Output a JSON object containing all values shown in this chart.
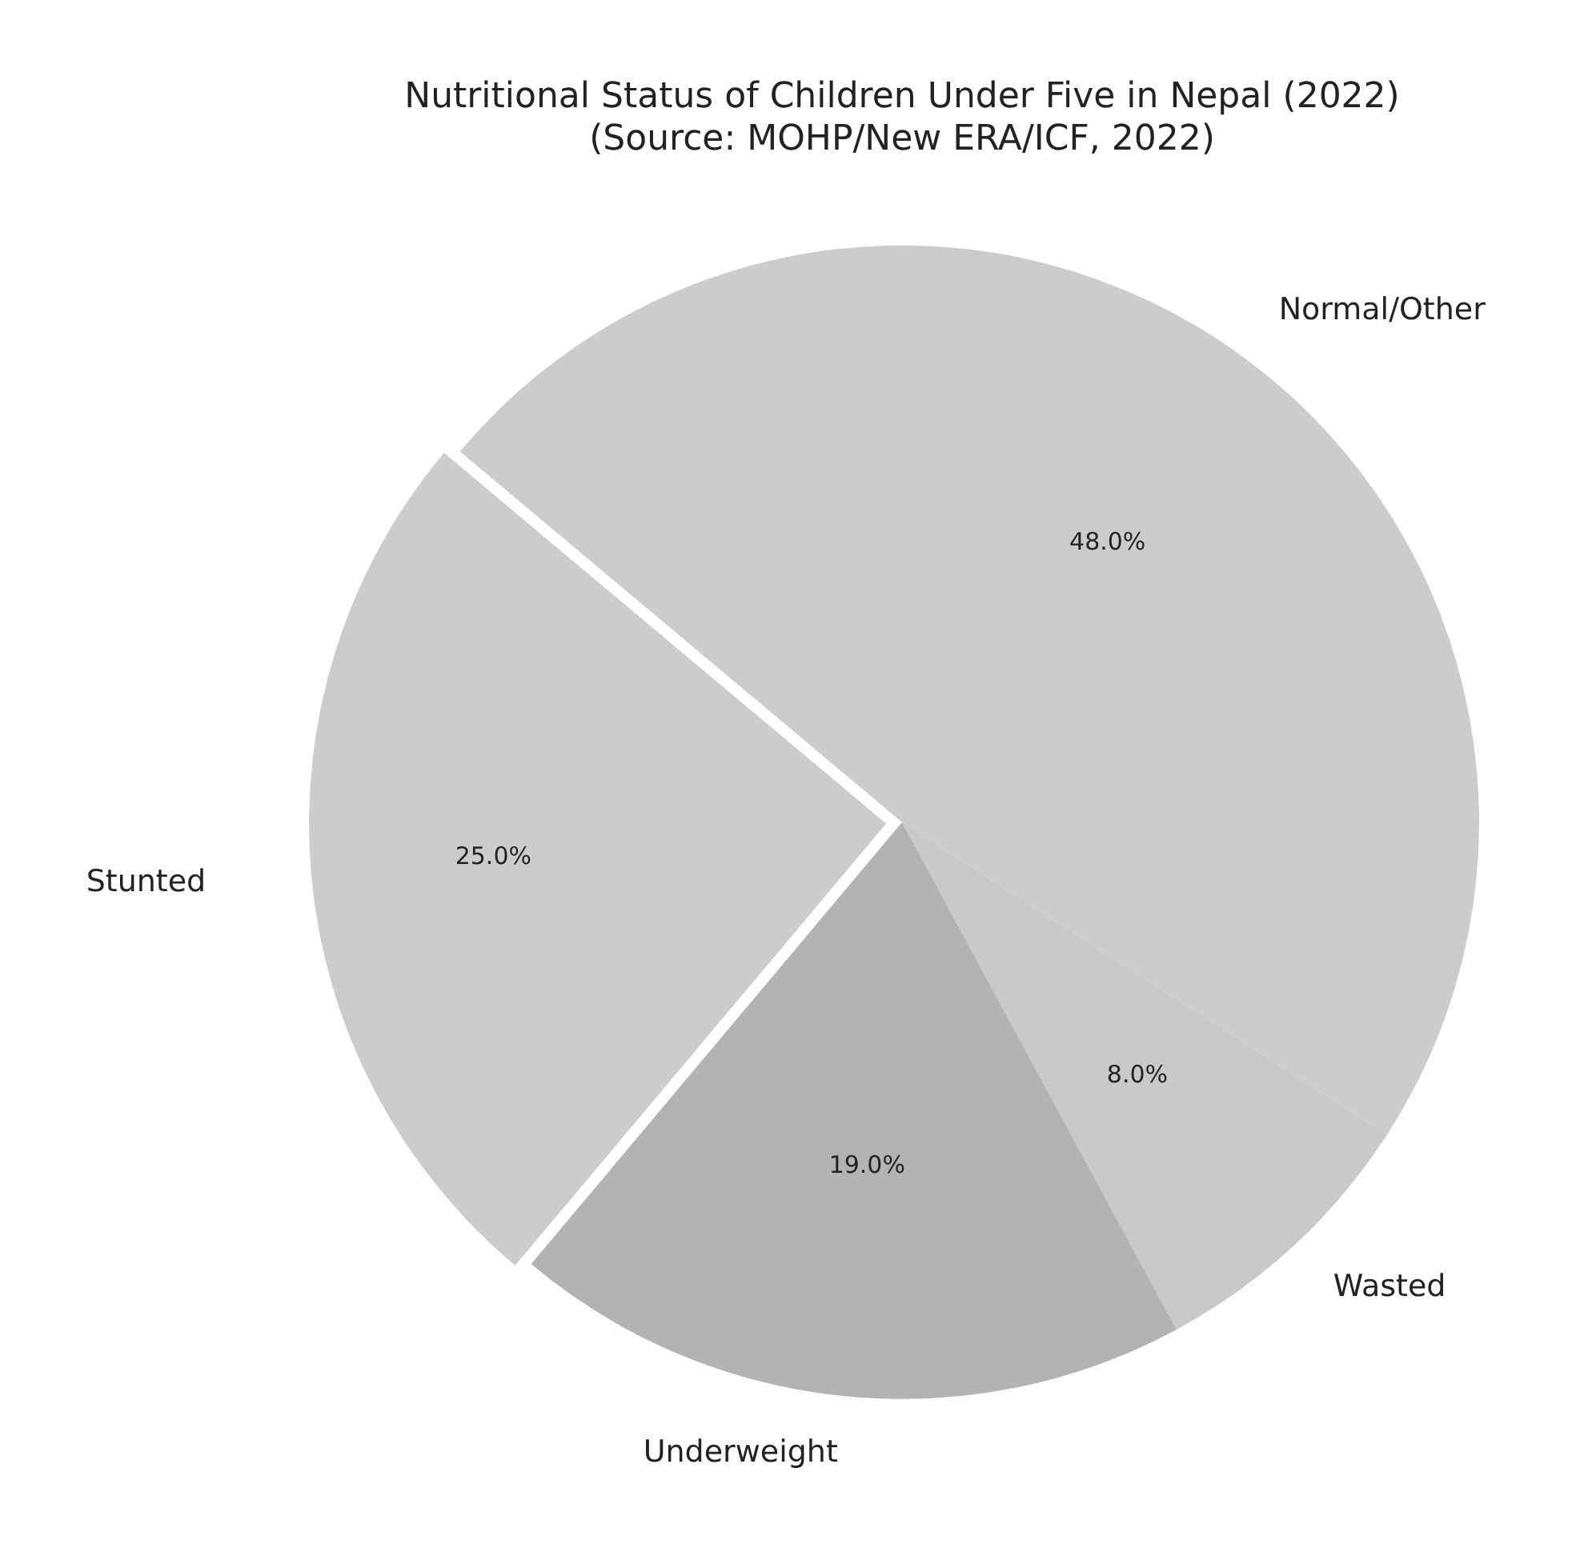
{
  "chart_data": {
    "type": "pie",
    "title": "Nutritional Status of Children Under Five in Nepal (2022)",
    "subtitle": "(Source: MOHP/New ERA/ICF, 2022)",
    "categories": [
      "Stunted",
      "Underweight",
      "Wasted",
      "Normal/Other"
    ],
    "values": [
      25,
      19,
      8,
      48
    ],
    "colors": [
      "#cccccc",
      "#b3b3b3",
      "#c9c9c9",
      "#cccccc"
    ],
    "value_labels": [
      "25.0%",
      "19.0%",
      "8.0%",
      "48.0%"
    ],
    "legend": false
  }
}
